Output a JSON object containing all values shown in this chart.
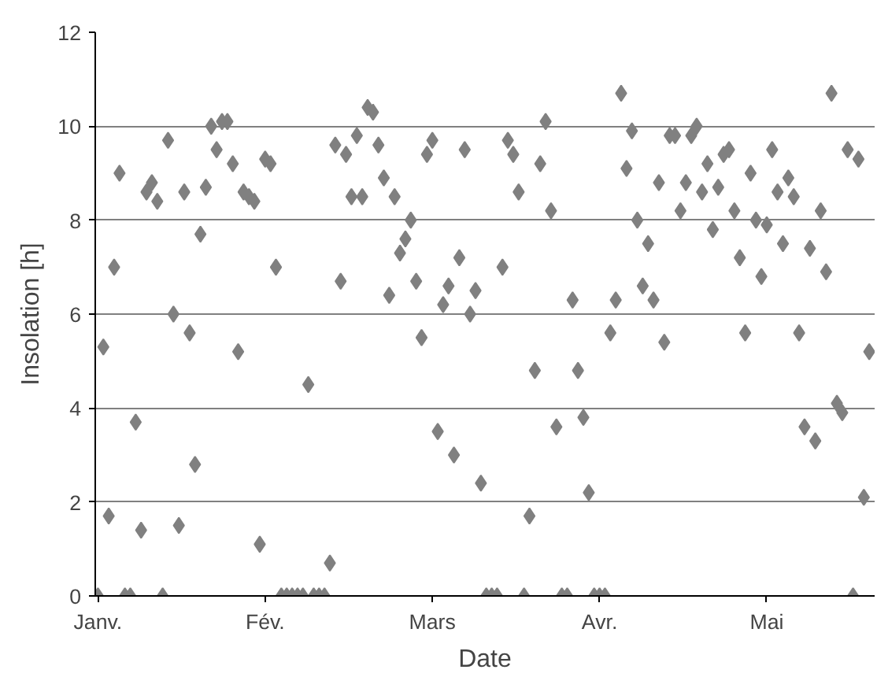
{
  "chart_data": {
    "type": "scatter",
    "xlabel": "Date",
    "ylabel": "Insolation [h]",
    "marker": "diamond",
    "grid": "y",
    "categories": [
      "Janv.",
      null,
      null,
      null,
      null,
      null,
      null,
      null,
      null,
      null,
      null,
      null,
      null,
      null,
      null,
      null,
      null,
      null,
      null,
      null,
      null,
      null,
      null,
      null,
      null,
      null,
      null,
      null,
      null,
      null,
      null,
      "Fév.",
      null,
      null,
      null,
      null,
      null,
      null,
      null,
      null,
      null,
      null,
      null,
      null,
      null,
      null,
      null,
      null,
      null,
      null,
      null,
      null,
      null,
      null,
      null,
      null,
      null,
      null,
      null,
      null,
      null,
      null,
      "Mars",
      null,
      null,
      null,
      null,
      null,
      null,
      null,
      null,
      null,
      null,
      null,
      null,
      null,
      null,
      null,
      null,
      null,
      null,
      null,
      null,
      null,
      null,
      null,
      null,
      null,
      null,
      null,
      null,
      null,
      null,
      "Avr.",
      null,
      null,
      null,
      null,
      null,
      null,
      null,
      null,
      null,
      null,
      null,
      null,
      null,
      null,
      null,
      null,
      null,
      null,
      null,
      null,
      null,
      null,
      null,
      null,
      null,
      null,
      null,
      null,
      null,
      null,
      "Mai",
      null,
      null,
      null,
      null,
      null,
      null,
      null,
      null,
      null,
      null,
      null,
      null,
      null,
      null,
      null,
      null,
      null,
      null,
      null
    ],
    "ylim": [
      0,
      12
    ],
    "yticks": [
      0,
      2,
      4,
      6,
      8,
      10,
      12
    ],
    "series": [
      {
        "color": "#808080",
        "values": [
          0,
          5.3,
          1.7,
          7.0,
          9.0,
          0,
          0,
          3.7,
          1.4,
          8.6,
          8.8,
          8.4,
          0,
          9.7,
          6.0,
          1.5,
          8.6,
          5.6,
          2.8,
          7.7,
          8.7,
          10.0,
          9.5,
          10.1,
          10.1,
          9.2,
          5.2,
          8.6,
          8.5,
          8.4,
          1.1,
          9.3,
          9.2,
          7.0,
          0,
          0,
          0,
          0,
          0,
          4.5,
          0,
          0,
          0,
          0.7,
          9.6,
          6.7,
          9.4,
          8.5,
          9.8,
          8.5,
          10.4,
          10.3,
          9.6,
          8.9,
          6.4,
          8.5,
          7.3,
          7.6,
          8.0,
          6.7,
          5.5,
          9.4,
          9.7,
          3.5,
          6.2,
          6.6,
          3.0,
          7.2,
          9.5,
          6.0,
          6.5,
          2.4,
          0,
          0,
          0,
          7.0,
          9.7,
          9.4,
          8.6,
          0,
          1.7,
          4.8,
          9.2,
          10.1,
          8.2,
          3.6,
          0,
          0,
          6.3,
          4.8,
          3.8,
          2.2,
          0,
          0,
          0,
          5.6,
          6.3,
          10.7,
          9.1,
          9.9,
          8.0,
          6.6,
          7.5,
          6.3,
          8.8,
          5.4,
          9.8,
          9.8,
          8.2,
          8.8,
          9.8,
          10.0,
          8.6,
          9.2,
          7.8,
          8.7,
          9.4,
          9.5,
          8.2,
          7.2,
          5.6,
          9.0,
          8.0,
          6.8,
          7.9,
          9.5,
          8.6,
          7.5,
          8.9,
          8.5,
          5.6,
          3.6,
          7.4,
          3.3,
          8.2,
          6.9,
          10.7,
          4.1,
          3.9,
          9.5,
          0,
          9.3,
          2.1,
          5.2
        ]
      }
    ]
  }
}
